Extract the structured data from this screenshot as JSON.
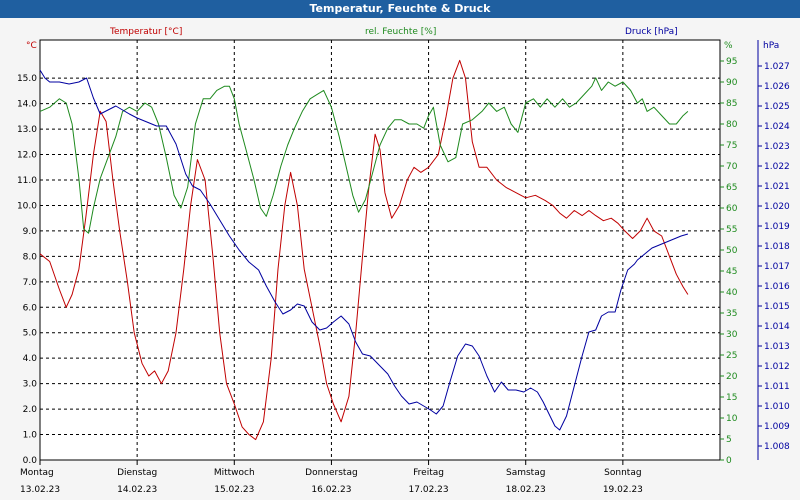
{
  "title": "Temperatur, Feuchte & Druck",
  "chart_data": {
    "type": "line",
    "x_labels": [
      {
        "day": "Montag",
        "date": "13.02.23"
      },
      {
        "day": "Dienstag",
        "date": "14.02.23"
      },
      {
        "day": "Mittwoch",
        "date": "15.02.23"
      },
      {
        "day": "Donnerstag",
        "date": "16.02.23"
      },
      {
        "day": "Freitag",
        "date": "17.02.23"
      },
      {
        "day": "Samstag",
        "date": "18.02.23"
      },
      {
        "day": "Sonntag",
        "date": "19.02.23"
      }
    ],
    "x_range_days": [
      0,
      7
    ],
    "axes": {
      "temperature": {
        "label": "Temperatur [°C]",
        "unit": "°C",
        "ylim": [
          0.0,
          16.5
        ],
        "ticks": [
          "0.0",
          "1.0",
          "2.0",
          "3.0",
          "4.0",
          "5.0",
          "6.0",
          "7.0",
          "8.0",
          "9.0",
          "10.0",
          "11.0",
          "12.0",
          "13.0",
          "14.0",
          "15.0"
        ]
      },
      "humidity": {
        "label": "rel. Feuchte [%]",
        "unit": "%",
        "ylim": [
          0,
          100
        ],
        "ticks": [
          "0",
          "5",
          "10",
          "15",
          "20",
          "25",
          "30",
          "35",
          "40",
          "45",
          "50",
          "55",
          "60",
          "65",
          "70",
          "75",
          "80",
          "85",
          "90",
          "95"
        ]
      },
      "pressure": {
        "label": "Druck [hPa]",
        "unit": "hPa",
        "ylim": [
          1.0073,
          1.0283
        ],
        "ticks": [
          "1.008",
          "1.009",
          "1.010",
          "1.011",
          "1.012",
          "1.013",
          "1.014",
          "1.015",
          "1.016",
          "1.017",
          "1.018",
          "1.019",
          "1.020",
          "1.021",
          "1.022",
          "1.023",
          "1.024",
          "1.025",
          "1.026",
          "1.027"
        ]
      }
    },
    "grid": true,
    "series": [
      {
        "name": "Temperatur [°C]",
        "axis": "temperature",
        "color": "#c00000",
        "points": [
          [
            0.0,
            8.1
          ],
          [
            0.1,
            7.8
          ],
          [
            0.2,
            6.7
          ],
          [
            0.27,
            6.0
          ],
          [
            0.33,
            6.5
          ],
          [
            0.4,
            7.5
          ],
          [
            0.47,
            9.5
          ],
          [
            0.55,
            12.0
          ],
          [
            0.62,
            13.7
          ],
          [
            0.68,
            13.3
          ],
          [
            0.75,
            11.0
          ],
          [
            0.82,
            9.0
          ],
          [
            0.9,
            7.0
          ],
          [
            0.97,
            5.0
          ],
          [
            1.05,
            3.8
          ],
          [
            1.12,
            3.3
          ],
          [
            1.18,
            3.5
          ],
          [
            1.25,
            3.0
          ],
          [
            1.32,
            3.5
          ],
          [
            1.4,
            5.0
          ],
          [
            1.48,
            7.5
          ],
          [
            1.55,
            10.0
          ],
          [
            1.62,
            11.8
          ],
          [
            1.7,
            11.0
          ],
          [
            1.78,
            8.0
          ],
          [
            1.85,
            5.0
          ],
          [
            1.92,
            3.0
          ],
          [
            2.0,
            2.2
          ],
          [
            2.08,
            1.3
          ],
          [
            2.15,
            1.0
          ],
          [
            2.22,
            0.8
          ],
          [
            2.3,
            1.5
          ],
          [
            2.38,
            4.0
          ],
          [
            2.45,
            7.5
          ],
          [
            2.52,
            10.0
          ],
          [
            2.58,
            11.3
          ],
          [
            2.65,
            10.0
          ],
          [
            2.72,
            7.5
          ],
          [
            2.8,
            6.0
          ],
          [
            2.88,
            4.5
          ],
          [
            2.95,
            3.0
          ],
          [
            3.02,
            2.2
          ],
          [
            3.1,
            1.5
          ],
          [
            3.18,
            2.5
          ],
          [
            3.25,
            5.0
          ],
          [
            3.32,
            8.0
          ],
          [
            3.38,
            10.5
          ],
          [
            3.45,
            12.8
          ],
          [
            3.5,
            12.2
          ],
          [
            3.55,
            10.5
          ],
          [
            3.62,
            9.5
          ],
          [
            3.7,
            10.0
          ],
          [
            3.78,
            11.0
          ],
          [
            3.85,
            11.5
          ],
          [
            3.92,
            11.3
          ],
          [
            4.0,
            11.5
          ],
          [
            4.1,
            12.0
          ],
          [
            4.18,
            13.5
          ],
          [
            4.25,
            15.0
          ],
          [
            4.32,
            15.7
          ],
          [
            4.38,
            15.0
          ],
          [
            4.45,
            12.5
          ],
          [
            4.52,
            11.5
          ],
          [
            4.6,
            11.5
          ],
          [
            4.7,
            11.0
          ],
          [
            4.8,
            10.7
          ],
          [
            4.9,
            10.5
          ],
          [
            5.0,
            10.3
          ],
          [
            5.1,
            10.4
          ],
          [
            5.2,
            10.2
          ],
          [
            5.28,
            10.0
          ],
          [
            5.35,
            9.7
          ],
          [
            5.42,
            9.5
          ],
          [
            5.5,
            9.8
          ],
          [
            5.58,
            9.6
          ],
          [
            5.65,
            9.8
          ],
          [
            5.72,
            9.6
          ],
          [
            5.8,
            9.4
          ],
          [
            5.88,
            9.5
          ],
          [
            5.95,
            9.3
          ],
          [
            6.02,
            9.0
          ],
          [
            6.1,
            8.7
          ],
          [
            6.18,
            9.0
          ],
          [
            6.25,
            9.5
          ],
          [
            6.32,
            9.0
          ],
          [
            6.4,
            8.8
          ],
          [
            6.48,
            8.0
          ],
          [
            6.55,
            7.3
          ],
          [
            6.62,
            6.8
          ],
          [
            6.67,
            6.5
          ]
        ]
      },
      {
        "name": "rel. Feuchte [%]",
        "axis": "humidity",
        "color": "#1e8a1e",
        "points": [
          [
            0.0,
            83
          ],
          [
            0.1,
            84
          ],
          [
            0.2,
            86
          ],
          [
            0.27,
            85
          ],
          [
            0.33,
            80
          ],
          [
            0.4,
            67
          ],
          [
            0.45,
            55
          ],
          [
            0.5,
            54
          ],
          [
            0.55,
            60
          ],
          [
            0.62,
            67
          ],
          [
            0.7,
            72
          ],
          [
            0.78,
            77
          ],
          [
            0.85,
            83
          ],
          [
            0.92,
            84
          ],
          [
            1.0,
            83
          ],
          [
            1.08,
            85
          ],
          [
            1.15,
            84
          ],
          [
            1.22,
            80
          ],
          [
            1.3,
            72
          ],
          [
            1.38,
            63
          ],
          [
            1.45,
            60
          ],
          [
            1.52,
            65
          ],
          [
            1.6,
            80
          ],
          [
            1.68,
            86
          ],
          [
            1.75,
            86
          ],
          [
            1.82,
            88
          ],
          [
            1.9,
            89
          ],
          [
            1.95,
            89
          ],
          [
            2.0,
            86
          ],
          [
            2.05,
            80
          ],
          [
            2.12,
            74
          ],
          [
            2.2,
            67
          ],
          [
            2.27,
            60
          ],
          [
            2.33,
            58
          ],
          [
            2.4,
            63
          ],
          [
            2.48,
            70
          ],
          [
            2.55,
            75
          ],
          [
            2.62,
            79
          ],
          [
            2.7,
            83
          ],
          [
            2.78,
            86
          ],
          [
            2.85,
            87
          ],
          [
            2.92,
            88
          ],
          [
            3.0,
            84
          ],
          [
            3.08,
            77
          ],
          [
            3.15,
            70
          ],
          [
            3.22,
            63
          ],
          [
            3.28,
            59
          ],
          [
            3.35,
            62
          ],
          [
            3.42,
            68
          ],
          [
            3.5,
            75
          ],
          [
            3.58,
            79
          ],
          [
            3.65,
            81
          ],
          [
            3.72,
            81
          ],
          [
            3.8,
            80
          ],
          [
            3.88,
            80
          ],
          [
            3.95,
            79
          ],
          [
            4.0,
            82
          ],
          [
            4.05,
            84
          ],
          [
            4.12,
            75
          ],
          [
            4.2,
            71
          ],
          [
            4.28,
            72
          ],
          [
            4.35,
            80
          ],
          [
            4.45,
            81
          ],
          [
            4.55,
            83
          ],
          [
            4.62,
            85
          ],
          [
            4.7,
            83
          ],
          [
            4.78,
            84
          ],
          [
            4.85,
            80
          ],
          [
            4.92,
            78
          ],
          [
            5.0,
            85
          ],
          [
            5.08,
            86
          ],
          [
            5.15,
            84
          ],
          [
            5.22,
            86
          ],
          [
            5.3,
            84
          ],
          [
            5.38,
            86
          ],
          [
            5.45,
            84
          ],
          [
            5.52,
            85
          ],
          [
            5.6,
            87
          ],
          [
            5.68,
            89
          ],
          [
            5.72,
            91
          ],
          [
            5.78,
            88
          ],
          [
            5.85,
            90
          ],
          [
            5.92,
            89
          ],
          [
            6.0,
            90
          ],
          [
            6.08,
            88
          ],
          [
            6.15,
            85
          ],
          [
            6.2,
            86
          ],
          [
            6.25,
            83
          ],
          [
            6.32,
            84
          ],
          [
            6.4,
            82
          ],
          [
            6.48,
            80
          ],
          [
            6.55,
            80
          ],
          [
            6.62,
            82
          ],
          [
            6.67,
            83
          ]
        ]
      },
      {
        "name": "Druck [hPa]",
        "axis": "pressure",
        "color": "#0000a0",
        "points": [
          [
            0.0,
            1.0268
          ],
          [
            0.05,
            1.0264
          ],
          [
            0.1,
            1.0262
          ],
          [
            0.2,
            1.0262
          ],
          [
            0.3,
            1.0261
          ],
          [
            0.4,
            1.0262
          ],
          [
            0.48,
            1.0264
          ],
          [
            0.55,
            1.0254
          ],
          [
            0.62,
            1.0246
          ],
          [
            0.7,
            1.0248
          ],
          [
            0.78,
            1.025
          ],
          [
            0.85,
            1.0248
          ],
          [
            0.92,
            1.0246
          ],
          [
            1.0,
            1.0244
          ],
          [
            1.1,
            1.0242
          ],
          [
            1.2,
            1.024
          ],
          [
            1.3,
            1.024
          ],
          [
            1.4,
            1.0231
          ],
          [
            1.5,
            1.0216
          ],
          [
            1.57,
            1.021
          ],
          [
            1.65,
            1.0208
          ],
          [
            1.75,
            1.0201
          ],
          [
            1.85,
            1.0193
          ],
          [
            1.95,
            1.0185
          ],
          [
            2.05,
            1.0178
          ],
          [
            2.15,
            1.0172
          ],
          [
            2.25,
            1.0168
          ],
          [
            2.33,
            1.016
          ],
          [
            2.42,
            1.0152
          ],
          [
            2.5,
            1.0146
          ],
          [
            2.58,
            1.0148
          ],
          [
            2.65,
            1.0151
          ],
          [
            2.72,
            1.015
          ],
          [
            2.8,
            1.0142
          ],
          [
            2.88,
            1.0138
          ],
          [
            2.95,
            1.0139
          ],
          [
            3.02,
            1.0142
          ],
          [
            3.1,
            1.0145
          ],
          [
            3.18,
            1.0141
          ],
          [
            3.25,
            1.0132
          ],
          [
            3.32,
            1.0126
          ],
          [
            3.4,
            1.0125
          ],
          [
            3.5,
            1.012
          ],
          [
            3.58,
            1.0116
          ],
          [
            3.65,
            1.011
          ],
          [
            3.72,
            1.0105
          ],
          [
            3.8,
            1.0101
          ],
          [
            3.88,
            1.0102
          ],
          [
            3.95,
            1.01
          ],
          [
            4.02,
            1.0098
          ],
          [
            4.08,
            1.0096
          ],
          [
            4.15,
            1.01
          ],
          [
            4.22,
            1.0112
          ],
          [
            4.3,
            1.0125
          ],
          [
            4.38,
            1.0131
          ],
          [
            4.45,
            1.013
          ],
          [
            4.52,
            1.0125
          ],
          [
            4.6,
            1.0115
          ],
          [
            4.68,
            1.0107
          ],
          [
            4.75,
            1.0112
          ],
          [
            4.82,
            1.0108
          ],
          [
            4.9,
            1.0108
          ],
          [
            4.98,
            1.0107
          ],
          [
            5.05,
            1.0109
          ],
          [
            5.12,
            1.0107
          ],
          [
            5.18,
            1.0102
          ],
          [
            5.25,
            1.0095
          ],
          [
            5.3,
            1.009
          ],
          [
            5.35,
            1.0088
          ],
          [
            5.42,
            1.0095
          ],
          [
            5.5,
            1.011
          ],
          [
            5.58,
            1.0125
          ],
          [
            5.65,
            1.0137
          ],
          [
            5.72,
            1.0138
          ],
          [
            5.78,
            1.0145
          ],
          [
            5.85,
            1.0147
          ],
          [
            5.92,
            1.0147
          ],
          [
            5.98,
            1.0158
          ],
          [
            6.05,
            1.0168
          ],
          [
            6.12,
            1.0171
          ],
          [
            6.15,
            1.0173
          ],
          [
            6.2,
            1.0175
          ],
          [
            6.25,
            1.0177
          ],
          [
            6.3,
            1.0179
          ],
          [
            6.35,
            1.018
          ],
          [
            6.4,
            1.0181
          ],
          [
            6.45,
            1.0182
          ],
          [
            6.5,
            1.0183
          ],
          [
            6.55,
            1.0184
          ],
          [
            6.6,
            1.0185
          ],
          [
            6.67,
            1.0186
          ]
        ]
      }
    ]
  }
}
